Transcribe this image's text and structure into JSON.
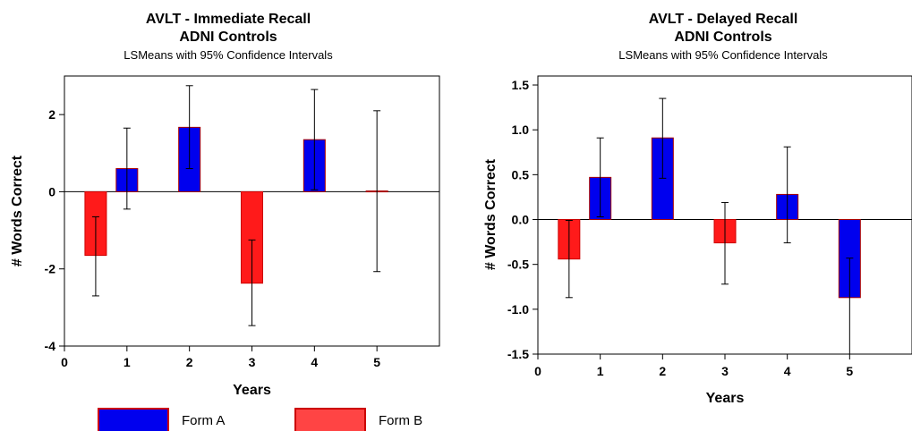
{
  "colors": {
    "form_a": "#0000ee",
    "form_b": "#ff1a1a",
    "form_a_stroke": "#aa0000",
    "form_b_stroke": "#cc0000",
    "error_bar": "#000000"
  },
  "legend": {
    "items": [
      {
        "label": "Form A",
        "color": "#0000ee"
      },
      {
        "label": "Form B",
        "color": "#ff4444"
      }
    ]
  },
  "chart_data": [
    {
      "type": "bar",
      "title_line1": "AVLT - Immediate Recall",
      "title_line2": "ADNI Controls",
      "subtitle": "LSMeans with 95% Confidence Intervals",
      "xlabel": "Years",
      "ylabel": "# Words Correct",
      "xlim": [
        0,
        6
      ],
      "ylim": [
        -4,
        3
      ],
      "xticks": [
        0,
        1,
        2,
        3,
        4,
        5
      ],
      "yticks": [
        -4,
        -2,
        0,
        2
      ],
      "ytick_labels": [
        "-4",
        "-2",
        "0",
        "2"
      ],
      "grid": false,
      "bars": [
        {
          "x": 0.5,
          "value": -1.65,
          "lower": -2.7,
          "upper": -0.65,
          "form": "B"
        },
        {
          "x": 1,
          "value": 0.6,
          "lower": -0.45,
          "upper": 1.65,
          "form": "A"
        },
        {
          "x": 2,
          "value": 1.67,
          "lower": 0.6,
          "upper": 2.75,
          "form": "A"
        },
        {
          "x": 3,
          "value": -2.37,
          "lower": -3.47,
          "upper": -1.25,
          "form": "B"
        },
        {
          "x": 4,
          "value": 1.35,
          "lower": 0.05,
          "upper": 2.65,
          "form": "A"
        },
        {
          "x": 5,
          "value": 0.02,
          "lower": -2.07,
          "upper": 2.1,
          "form": "A"
        }
      ]
    },
    {
      "type": "bar",
      "title_line1": "AVLT - Delayed Recall",
      "title_line2": "ADNI Controls",
      "subtitle": "LSMeans with 95% Confidence Intervals",
      "xlabel": "Years",
      "ylabel": "# Words Correct",
      "xlim": [
        0,
        6
      ],
      "ylim": [
        -1.5,
        1.6
      ],
      "xticks": [
        0,
        1,
        2,
        3,
        4,
        5
      ],
      "yticks": [
        -1.5,
        -1.0,
        -0.5,
        0.0,
        0.5,
        1.0,
        1.5
      ],
      "ytick_labels": [
        "-1.5",
        "-1.0",
        "-0.5",
        "0.0",
        "0.5",
        "1.0",
        "1.5"
      ],
      "grid": false,
      "bars": [
        {
          "x": 0.5,
          "value": -0.44,
          "lower": -0.87,
          "upper": -0.01,
          "form": "B"
        },
        {
          "x": 1,
          "value": 0.47,
          "lower": 0.03,
          "upper": 0.91,
          "form": "A"
        },
        {
          "x": 2,
          "value": 0.91,
          "lower": 0.46,
          "upper": 1.35,
          "form": "A"
        },
        {
          "x": 3,
          "value": -0.26,
          "lower": -0.72,
          "upper": 0.19,
          "form": "B"
        },
        {
          "x": 4,
          "value": 0.28,
          "lower": -0.26,
          "upper": 0.81,
          "form": "A"
        },
        {
          "x": 5,
          "value": -0.87,
          "lower": -1.5,
          "upper": -0.43,
          "form": "A"
        }
      ]
    }
  ]
}
